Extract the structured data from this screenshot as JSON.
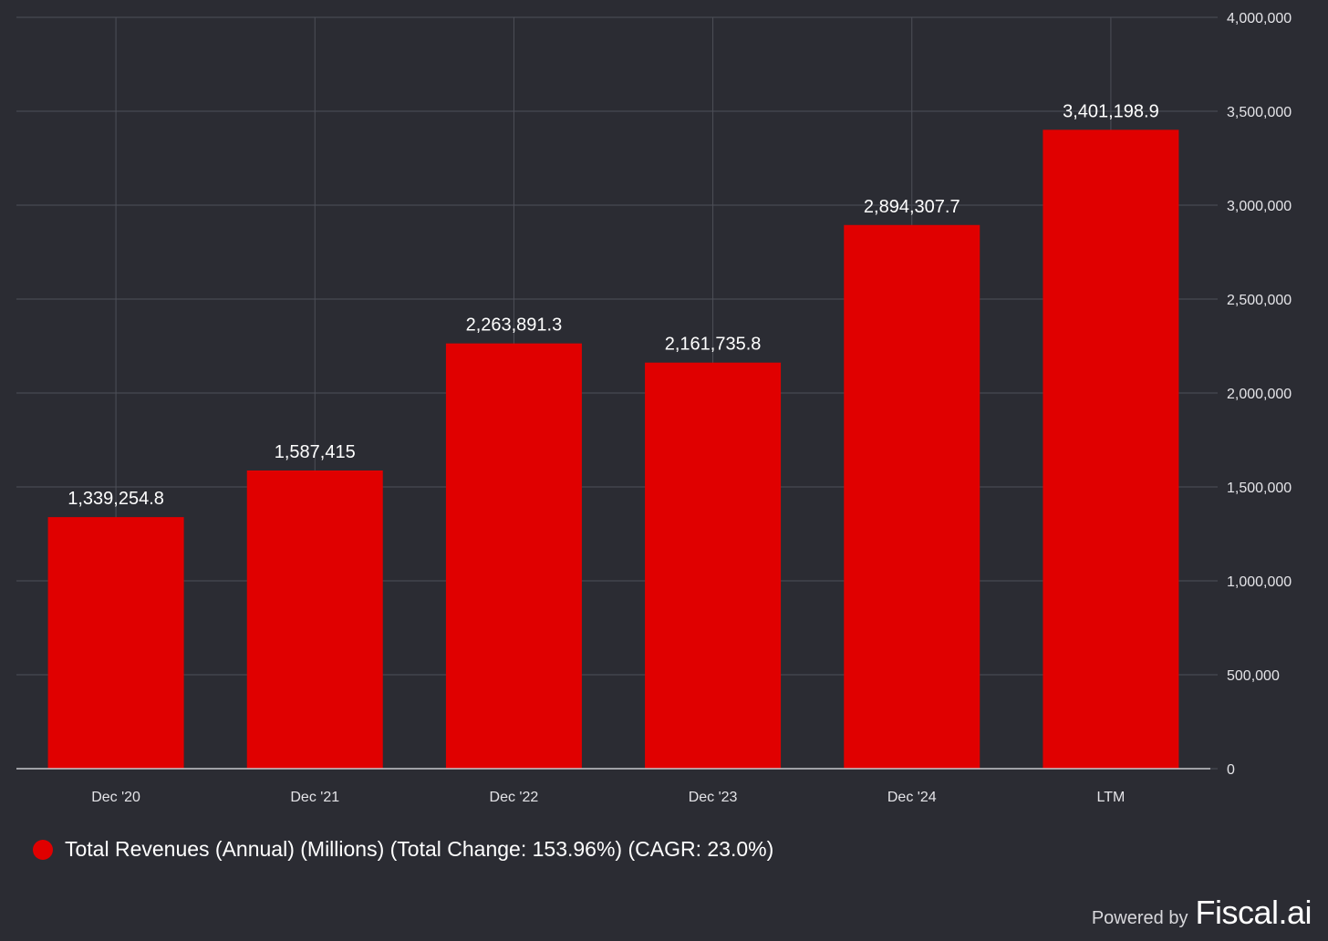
{
  "chart_data": {
    "type": "bar",
    "categories": [
      "Dec '20",
      "Dec '21",
      "Dec '22",
      "Dec '23",
      "Dec '24",
      "LTM"
    ],
    "series": [
      {
        "name": "Total Revenues (Annual) (Millions) (Total Change: 153.96%) (CAGR: 23.0%)",
        "values": [
          1339254.8,
          1587415,
          2263891.3,
          2161735.8,
          2894307.7,
          3401198.9
        ],
        "labels": [
          "1,339,254.8",
          "1,587,415",
          "2,263,891.3",
          "2,161,735.8",
          "2,894,307.7",
          "3,401,198.9"
        ]
      }
    ],
    "ylim": [
      0,
      4000000
    ],
    "yticks": [
      0,
      500000,
      1000000,
      1500000,
      2000000,
      2500000,
      3000000,
      3500000,
      4000000
    ],
    "ytick_labels": [
      "0",
      "500,000",
      "1,000,000",
      "1,500,000",
      "2,000,000",
      "2,500,000",
      "3,000,000",
      "3,500,000",
      "4,000,000"
    ],
    "y_axis_side": "right",
    "grid": true,
    "legend_position": "bottom-left",
    "title": "",
    "xlabel": "",
    "ylabel": ""
  },
  "colors": {
    "background": "#2b2c33",
    "bar": "#e00000",
    "grid": "#4d4f58",
    "axis": "#c8c8cc",
    "tick_text": "#e4e4e8",
    "label_text": "#ffffff"
  },
  "legend": {
    "label": "Total Revenues (Annual) (Millions) (Total Change: 153.96%) (CAGR: 23.0%)"
  },
  "branding": {
    "powered_by": "Powered by",
    "brand": "Fiscal.ai"
  }
}
